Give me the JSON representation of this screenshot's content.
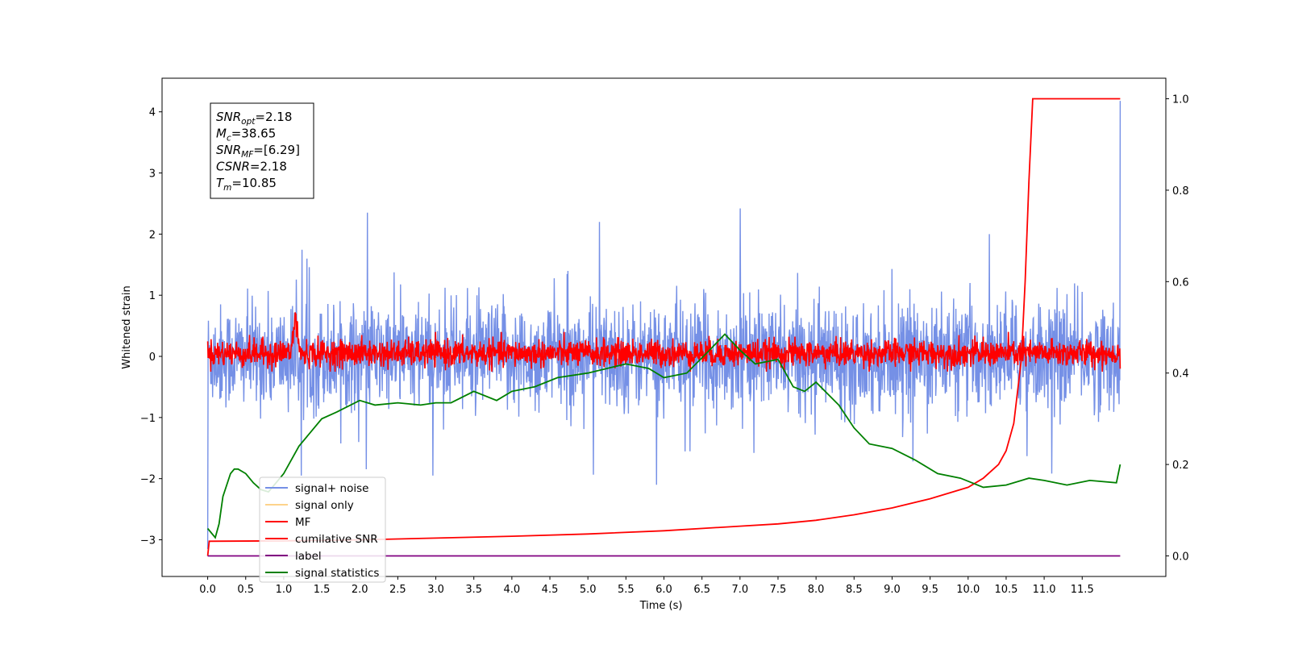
{
  "chart_data": {
    "type": "line",
    "xlabel": "Time (s)",
    "ylabel": "Whitened strain",
    "xlim": [
      -0.6,
      12.6
    ],
    "ylim": [
      -3.6,
      4.55
    ],
    "y2lim": [
      -0.045,
      1.045
    ],
    "xticks": [
      "0.0",
      "0.5",
      "1.0",
      "1.5",
      "2.0",
      "2.5",
      "3.0",
      "3.5",
      "4.0",
      "4.5",
      "5.0",
      "5.5",
      "6.0",
      "6.5",
      "7.0",
      "7.5",
      "8.0",
      "8.5",
      "9.0",
      "9.5",
      "10.0",
      "10.5",
      "11.0",
      "11.5"
    ],
    "yticks": [
      {
        "v": 4,
        "label": "4"
      },
      {
        "v": 3,
        "label": "3"
      },
      {
        "v": 2,
        "label": "2"
      },
      {
        "v": 1,
        "label": "1"
      },
      {
        "v": 0,
        "label": "0"
      },
      {
        "v": -1,
        "label": "−1"
      },
      {
        "v": -2,
        "label": "−2"
      },
      {
        "v": -3,
        "label": "−3"
      }
    ],
    "y2ticks": [
      "0.0",
      "0.2",
      "0.4",
      "0.6",
      "0.8",
      "1.0"
    ],
    "grid": false,
    "legend_position": "lower-left",
    "series": [
      {
        "name": "signal+ noise",
        "color": "#7590e6",
        "axis": "left",
        "description_values": {
          "x_range": [
            0,
            12
          ],
          "mean": 0.0,
          "typical_range": [
            -1.3,
            1.3
          ],
          "peaks": [
            2.35,
            2.42,
            2.2,
            4.18,
            -2.1
          ],
          "n_samples": 2400
        }
      },
      {
        "name": "signal only",
        "color": "#fdd38b",
        "axis": "left",
        "values": []
      },
      {
        "name": "MF",
        "color": "#ff0000",
        "axis": "left",
        "description_values": {
          "x_range": [
            0,
            12
          ],
          "typical_range": [
            -0.25,
            0.4
          ],
          "bump_at": 1.15,
          "bump_peak": 1.0
        }
      },
      {
        "name": "cumilative SNR",
        "color": "#ff0000",
        "axis": "right",
        "x": [
          0,
          0.02,
          1,
          2,
          3,
          4,
          5,
          6,
          7,
          7.5,
          8,
          8.5,
          9,
          9.5,
          10,
          10.2,
          10.4,
          10.5,
          10.6,
          10.7,
          10.75,
          10.8,
          10.85,
          12
        ],
        "values": [
          0,
          0.032,
          0.033,
          0.035,
          0.039,
          0.043,
          0.048,
          0.055,
          0.065,
          0.07,
          0.078,
          0.09,
          0.105,
          0.125,
          0.15,
          0.17,
          0.2,
          0.23,
          0.29,
          0.43,
          0.6,
          0.82,
          1.0,
          1.0
        ]
      },
      {
        "name": "label",
        "color": "#800080",
        "axis": "right",
        "x": [
          0,
          12
        ],
        "values": [
          0.0,
          0.0
        ]
      },
      {
        "name": "signal statistics",
        "color": "#008000",
        "axis": "right",
        "x": [
          0,
          0.1,
          0.15,
          0.2,
          0.3,
          0.35,
          0.4,
          0.5,
          0.6,
          0.7,
          0.8,
          1.0,
          1.2,
          1.5,
          1.7,
          2.0,
          2.2,
          2.5,
          2.8,
          3.0,
          3.2,
          3.5,
          3.8,
          4.0,
          4.3,
          4.6,
          5.0,
          5.5,
          5.8,
          6.0,
          6.3,
          6.6,
          6.8,
          7.0,
          7.2,
          7.5,
          7.7,
          7.85,
          8.0,
          8.3,
          8.5,
          8.7,
          9.0,
          9.3,
          9.6,
          9.9,
          10.2,
          10.5,
          10.8,
          11.0,
          11.3,
          11.6,
          11.95,
          12.0
        ],
        "values": [
          0.06,
          0.04,
          0.07,
          0.13,
          0.18,
          0.19,
          0.19,
          0.18,
          0.16,
          0.145,
          0.14,
          0.18,
          0.24,
          0.3,
          0.315,
          0.34,
          0.33,
          0.335,
          0.33,
          0.335,
          0.335,
          0.36,
          0.34,
          0.36,
          0.37,
          0.39,
          0.4,
          0.42,
          0.41,
          0.39,
          0.4,
          0.45,
          0.485,
          0.45,
          0.42,
          0.43,
          0.37,
          0.36,
          0.38,
          0.33,
          0.28,
          0.245,
          0.235,
          0.21,
          0.18,
          0.17,
          0.15,
          0.155,
          0.17,
          0.165,
          0.155,
          0.165,
          0.16,
          0.2
        ]
      }
    ]
  },
  "annotation": {
    "lines": [
      {
        "name": "SNR",
        "sub": "opt",
        "value": "=2.18"
      },
      {
        "name": "M",
        "sub": "c",
        "value": "=38.65"
      },
      {
        "name": "SNR",
        "sub": "MF",
        "value": "=[6.29]"
      },
      {
        "name": "CSNR",
        "sub": "",
        "value": "=2.18"
      },
      {
        "name": "T",
        "sub": "m",
        "value": "=10.85"
      }
    ]
  }
}
